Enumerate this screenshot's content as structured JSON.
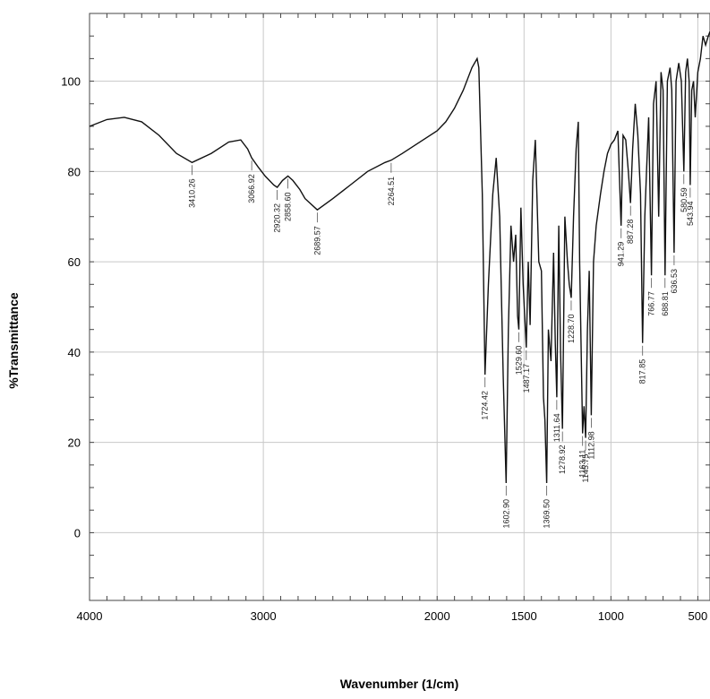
{
  "chart_data": {
    "type": "line",
    "title": "",
    "xlabel": "Wavenumber (1/cm)",
    "ylabel": "%Transmittance",
    "xlim": [
      4000,
      430
    ],
    "ylim": [
      -15,
      115
    ],
    "x_reversed": true,
    "grid": true,
    "x_ticks": [
      4000,
      3000,
      2000,
      1500,
      1000,
      500
    ],
    "y_ticks": [
      0,
      20,
      40,
      60,
      80,
      100
    ],
    "series": [
      {
        "x": [
          4000,
          3900,
          3800,
          3700,
          3600,
          3500,
          3410.26,
          3300,
          3200,
          3130,
          3090,
          3066.92,
          3030,
          2990,
          2940,
          2920.32,
          2890,
          2858.6,
          2830,
          2790,
          2760,
          2689.57,
          2600,
          2500,
          2400,
          2300,
          2264.51,
          2200,
          2100,
          2000,
          1950,
          1900,
          1850,
          1800,
          1770,
          1760,
          1740,
          1724.42,
          1705,
          1680,
          1660,
          1640,
          1620,
          1602.9,
          1590,
          1575,
          1560,
          1548,
          1537,
          1529.6,
          1518,
          1505,
          1487.17,
          1476,
          1465,
          1450,
          1435,
          1415,
          1400,
          1388,
          1380,
          1369.5,
          1360,
          1345,
          1330,
          1320,
          1311.64,
          1300,
          1290,
          1278.92,
          1265,
          1250,
          1240,
          1228.7,
          1215,
          1200,
          1188,
          1180,
          1163.11,
          1155,
          1145.75,
          1135,
          1125,
          1112.98,
          1100,
          1085,
          1060,
          1040,
          1020,
          1000,
          980,
          960,
          941.29,
          930,
          915,
          900,
          887.28,
          875,
          860,
          845,
          830,
          817.85,
          805,
          795,
          783,
          766.77,
          755,
          740,
          725,
          712,
          700,
          688.81,
          675,
          660,
          650,
          636.53,
          625,
          610,
          595,
          580.59,
          570,
          560,
          550,
          543.94,
          535,
          525,
          515,
          500,
          485,
          470,
          455,
          440,
          430
        ],
        "y": [
          90,
          91.5,
          92,
          91,
          88,
          84,
          82,
          84,
          86.5,
          87,
          85,
          83,
          81,
          79,
          77,
          76.5,
          78,
          79,
          78,
          76,
          74,
          71.5,
          74,
          77,
          80,
          82,
          82.5,
          84,
          86.5,
          89,
          91,
          94,
          98,
          103,
          105,
          103,
          75,
          35,
          55,
          75,
          83,
          70,
          35,
          11,
          45,
          68,
          60,
          66,
          48,
          45,
          72,
          55,
          41,
          60,
          46,
          78,
          87,
          60,
          58,
          30,
          25,
          11,
          45,
          38,
          62,
          42,
          30,
          68,
          40,
          23,
          70,
          60,
          55,
          52,
          70,
          85,
          91,
          60,
          22,
          28,
          21,
          45,
          58,
          26,
          60,
          68,
          75,
          80,
          84,
          86,
          87,
          89,
          68,
          88,
          87,
          80,
          73,
          85,
          95,
          88,
          75,
          42,
          70,
          80,
          92,
          57,
          95,
          100,
          70,
          102,
          98,
          57,
          100,
          103,
          98,
          62,
          100,
          104,
          100,
          80,
          102,
          105,
          100,
          77,
          98,
          100,
          92,
          102,
          105,
          110,
          108,
          110,
          111
        ]
      }
    ],
    "peaks": [
      {
        "x": 3410.26,
        "y": 82,
        "label": "3410.26"
      },
      {
        "x": 3066.92,
        "y": 83,
        "label": "3066.92"
      },
      {
        "x": 2920.32,
        "y": 76.5,
        "label": "2920.32"
      },
      {
        "x": 2858.6,
        "y": 79,
        "label": "2858.60"
      },
      {
        "x": 2689.57,
        "y": 71.5,
        "label": "2689.57"
      },
      {
        "x": 2264.51,
        "y": 82.5,
        "label": "2264.51"
      },
      {
        "x": 1724.42,
        "y": 35,
        "label": "1724.42"
      },
      {
        "x": 1602.9,
        "y": 11,
        "label": "1602.90"
      },
      {
        "x": 1529.6,
        "y": 45,
        "label": "1529.60"
      },
      {
        "x": 1487.17,
        "y": 41,
        "label": "1487.17"
      },
      {
        "x": 1369.5,
        "y": 11,
        "label": "1369.50"
      },
      {
        "x": 1311.64,
        "y": 30,
        "label": "1311.64"
      },
      {
        "x": 1278.92,
        "y": 23,
        "label": "1278.92"
      },
      {
        "x": 1228.7,
        "y": 52,
        "label": "1228.70"
      },
      {
        "x": 1163.11,
        "y": 22,
        "label": "1163.11"
      },
      {
        "x": 1145.75,
        "y": 21,
        "label": "1145.75"
      },
      {
        "x": 1112.98,
        "y": 26,
        "label": "1112.98"
      },
      {
        "x": 941.29,
        "y": 68,
        "label": "941.29"
      },
      {
        "x": 887.28,
        "y": 73,
        "label": "887.28"
      },
      {
        "x": 817.85,
        "y": 42,
        "label": "817.85"
      },
      {
        "x": 766.77,
        "y": 57,
        "label": "766.77"
      },
      {
        "x": 688.81,
        "y": 57,
        "label": "688.81"
      },
      {
        "x": 636.53,
        "y": 62,
        "label": "636.53"
      },
      {
        "x": 580.59,
        "y": 80,
        "label": "580.59"
      },
      {
        "x": 543.94,
        "y": 77,
        "label": "543.94"
      }
    ]
  }
}
